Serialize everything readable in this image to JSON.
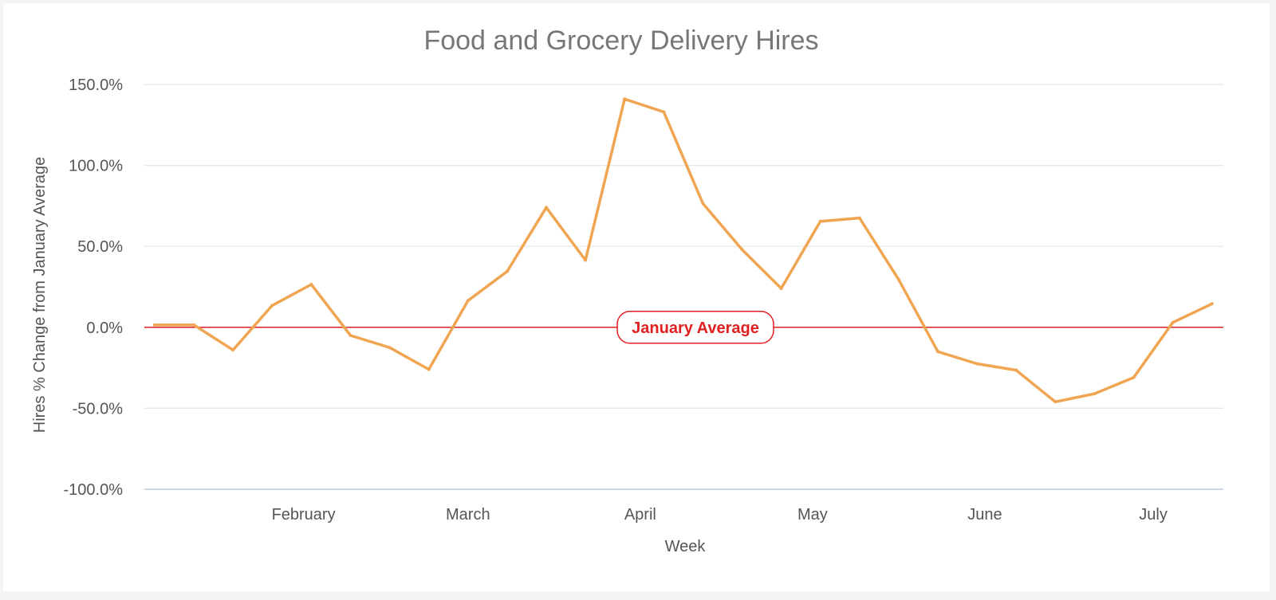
{
  "colors": {
    "series": "#f0a552",
    "reference": "#e02020",
    "grid": "#e6e6e6",
    "axis": "#ccd6eb"
  },
  "chart_data": {
    "type": "line",
    "title": "Food and Grocery Delivery Hires",
    "xlabel": "Week",
    "ylabel": "Hires % Change from January Average",
    "ylim": [
      -100,
      150
    ],
    "y_ticks": [
      150,
      100,
      50,
      0,
      -50,
      -100
    ],
    "y_tick_labels": [
      "150.0%",
      "100.0%",
      "50.0%",
      "0.0%",
      "-50.0%",
      "-100.0%"
    ],
    "x_month_labels": [
      {
        "label": "February",
        "week": 3.8
      },
      {
        "label": "March",
        "week": 8.0
      },
      {
        "label": "April",
        "week": 12.4
      },
      {
        "label": "May",
        "week": 16.8
      },
      {
        "label": "June",
        "week": 21.2
      },
      {
        "label": "July",
        "week": 25.5
      }
    ],
    "grid": true,
    "legend": "none",
    "series": [
      {
        "x": [
          0,
          1,
          2,
          3,
          4,
          5,
          6,
          7,
          8,
          9,
          10,
          11,
          12,
          13,
          14,
          15,
          16,
          17,
          18,
          19,
          20,
          21,
          22,
          23,
          24,
          25,
          26,
          27
        ],
        "values": [
          1.5,
          1.5,
          -14,
          13.5,
          26.5,
          -5,
          -12.5,
          -26,
          16.5,
          34.5,
          74,
          41.5,
          141,
          133,
          76.5,
          48,
          24,
          65.5,
          67.5,
          29.5,
          -15,
          -22.5,
          -26.5,
          -46,
          -41,
          -31,
          3,
          14.5
        ]
      }
    ],
    "annotations": [
      {
        "type": "reference_line",
        "y": 0,
        "label": "January Average"
      }
    ]
  }
}
